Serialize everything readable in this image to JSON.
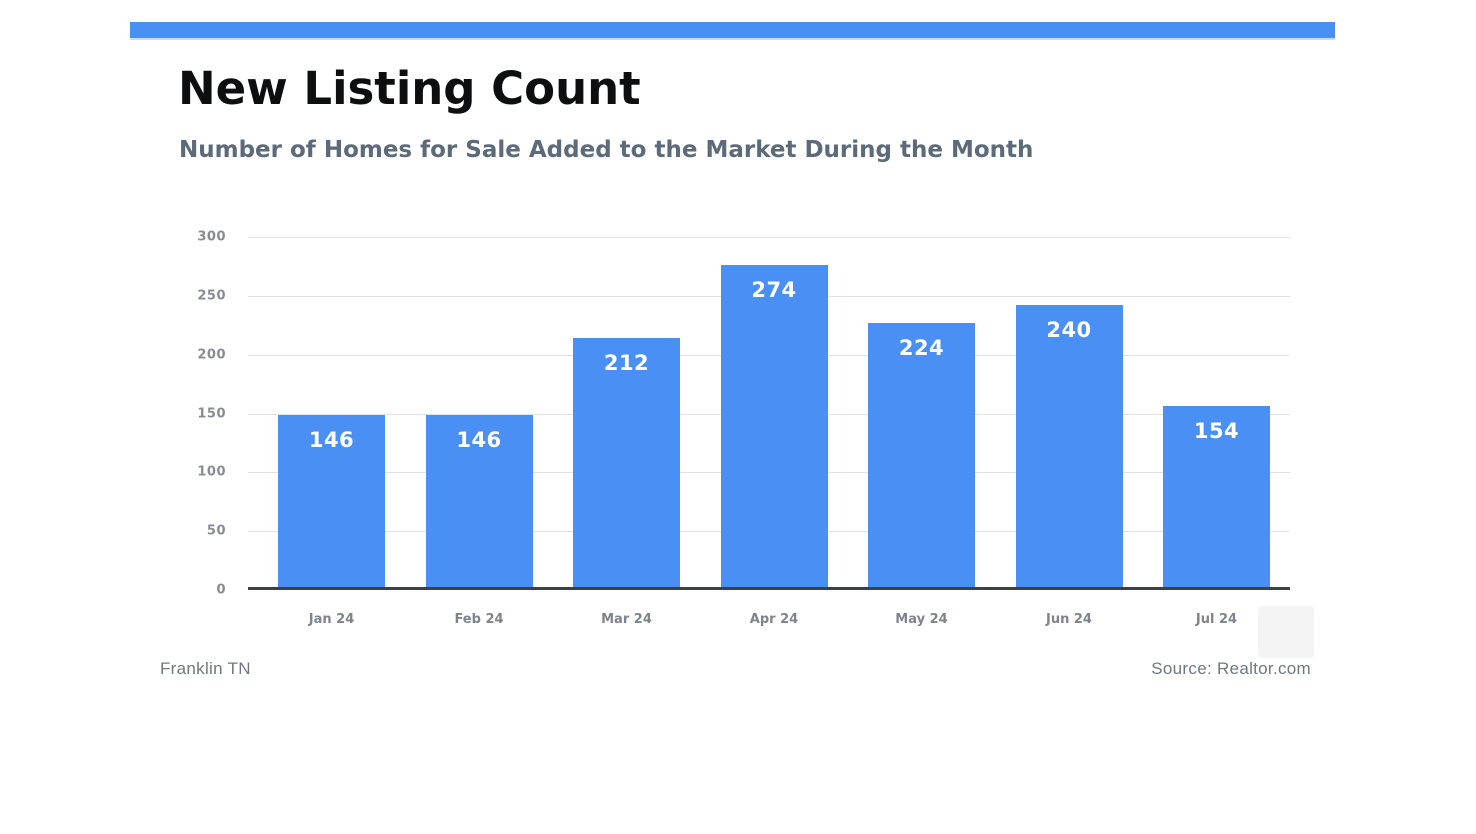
{
  "page": {
    "background": "#ffffff",
    "accent_color": "#4A90F4"
  },
  "header": {
    "title": "New Listing Count",
    "subtitle": "Number of Homes for Sale Added to the Market During the Month"
  },
  "footer": {
    "location": "Franklin TN",
    "source": "Source: Realtor.com"
  },
  "chart_data": {
    "type": "bar",
    "title": "New Listing Count",
    "subtitle": "Number of Homes for Sale Added to the Market During the Month",
    "categories": [
      "Jan 24",
      "Feb 24",
      "Mar 24",
      "Apr 24",
      "May 24",
      "Jun 24",
      "Jul 24"
    ],
    "values": [
      146,
      146,
      212,
      274,
      224,
      240,
      154
    ],
    "xlabel": "",
    "ylabel": "",
    "ylim": [
      0,
      300
    ],
    "yticks": [
      0,
      50,
      100,
      150,
      200,
      250,
      300
    ],
    "grid": true,
    "legend": "none",
    "bar_color": "#4A90F4",
    "value_label_color": "#ffffff"
  }
}
